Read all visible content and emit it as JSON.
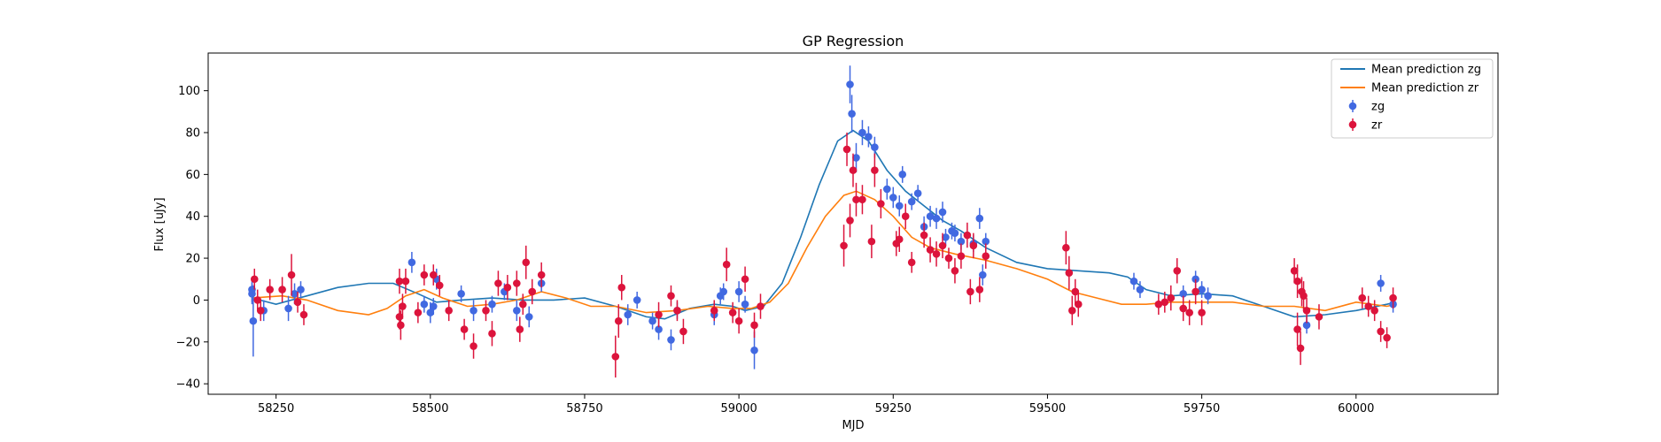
{
  "chart_data": {
    "type": "scatter",
    "title": "GP Regression",
    "xlabel": "MJD",
    "ylabel": "Flux [uJy]",
    "xlim": [
      58140,
      60230
    ],
    "ylim": [
      -45,
      118
    ],
    "xticks": [
      58250,
      58500,
      58750,
      59000,
      59250,
      59500,
      59750,
      60000
    ],
    "yticks": [
      -40,
      -20,
      0,
      20,
      40,
      60,
      80,
      100
    ],
    "grid": false,
    "legend_position": "upper right",
    "colors": {
      "zg_line": "#1f77b4",
      "zr_line": "#ff7f0e",
      "zg_points": "#4169e1",
      "zr_points": "#dc143c"
    },
    "legend": [
      {
        "key": "zg_line",
        "label": "Mean prediction zg",
        "kind": "line"
      },
      {
        "key": "zr_line",
        "label": "Mean prediction zr",
        "kind": "line"
      },
      {
        "key": "zg_points",
        "label": "zg",
        "kind": "errorbar"
      },
      {
        "key": "zr_points",
        "label": "zr",
        "kind": "errorbar"
      }
    ],
    "lines": [
      {
        "name": "Mean prediction zg",
        "points": [
          [
            58211,
            1
          ],
          [
            58250,
            -2
          ],
          [
            58300,
            2
          ],
          [
            58350,
            6
          ],
          [
            58400,
            8
          ],
          [
            58440,
            8
          ],
          [
            58480,
            3
          ],
          [
            58510,
            -1
          ],
          [
            58550,
            0
          ],
          [
            58600,
            1
          ],
          [
            58650,
            0
          ],
          [
            58700,
            0
          ],
          [
            58750,
            1
          ],
          [
            58800,
            -3
          ],
          [
            58850,
            -8
          ],
          [
            58880,
            -9
          ],
          [
            58920,
            -4
          ],
          [
            58960,
            -2
          ],
          [
            58990,
            -3
          ],
          [
            59010,
            -5
          ],
          [
            59040,
            -3
          ],
          [
            59070,
            8
          ],
          [
            59100,
            30
          ],
          [
            59130,
            55
          ],
          [
            59160,
            76
          ],
          [
            59185,
            81
          ],
          [
            59210,
            76
          ],
          [
            59240,
            62
          ],
          [
            59270,
            52
          ],
          [
            59300,
            45
          ],
          [
            59330,
            38
          ],
          [
            59360,
            33
          ],
          [
            59400,
            25
          ],
          [
            59450,
            18
          ],
          [
            59500,
            15
          ],
          [
            59550,
            14
          ],
          [
            59600,
            13
          ],
          [
            59630,
            11
          ],
          [
            59660,
            5
          ],
          [
            59700,
            2
          ],
          [
            59750,
            3
          ],
          [
            59800,
            2
          ],
          [
            59850,
            -3
          ],
          [
            59900,
            -8
          ],
          [
            59950,
            -7
          ],
          [
            60000,
            -5
          ],
          [
            60050,
            -2
          ],
          [
            60065,
            -1
          ]
        ]
      },
      {
        "name": "Mean prediction zr",
        "points": [
          [
            58211,
            1
          ],
          [
            58260,
            2
          ],
          [
            58300,
            0
          ],
          [
            58350,
            -5
          ],
          [
            58400,
            -7
          ],
          [
            58430,
            -4
          ],
          [
            58460,
            2
          ],
          [
            58490,
            5
          ],
          [
            58520,
            1
          ],
          [
            58560,
            -3
          ],
          [
            58600,
            -2
          ],
          [
            58640,
            0
          ],
          [
            58680,
            4
          ],
          [
            58720,
            1
          ],
          [
            58760,
            -3
          ],
          [
            58800,
            -3
          ],
          [
            58850,
            -6
          ],
          [
            58900,
            -5
          ],
          [
            58950,
            -3
          ],
          [
            58990,
            -4
          ],
          [
            59020,
            -4
          ],
          [
            59050,
            -1
          ],
          [
            59080,
            8
          ],
          [
            59110,
            25
          ],
          [
            59140,
            40
          ],
          [
            59170,
            50
          ],
          [
            59190,
            52
          ],
          [
            59220,
            48
          ],
          [
            59250,
            40
          ],
          [
            59280,
            30
          ],
          [
            59310,
            25
          ],
          [
            59350,
            22
          ],
          [
            59400,
            19
          ],
          [
            59450,
            15
          ],
          [
            59500,
            10
          ],
          [
            59540,
            4
          ],
          [
            59580,
            1
          ],
          [
            59620,
            -2
          ],
          [
            59660,
            -2
          ],
          [
            59700,
            -1
          ],
          [
            59750,
            -1
          ],
          [
            59800,
            -1
          ],
          [
            59850,
            -3
          ],
          [
            59900,
            -3
          ],
          [
            59950,
            -5
          ],
          [
            60000,
            -1
          ],
          [
            60050,
            -3
          ],
          [
            60065,
            -2
          ]
        ]
      }
    ],
    "series": [
      {
        "name": "zg",
        "points": [
          [
            58211,
            5,
            6
          ],
          [
            58211,
            3,
            5
          ],
          [
            58213,
            -10,
            17
          ],
          [
            58230,
            -5,
            5
          ],
          [
            58270,
            -4,
            6
          ],
          [
            58280,
            3,
            5
          ],
          [
            58290,
            5,
            4
          ],
          [
            58470,
            18,
            5
          ],
          [
            58490,
            -2,
            4
          ],
          [
            58500,
            -6,
            5
          ],
          [
            58505,
            -3,
            4
          ],
          [
            58510,
            10,
            5
          ],
          [
            58550,
            3,
            4
          ],
          [
            58570,
            -5,
            5
          ],
          [
            58600,
            -2,
            4
          ],
          [
            58620,
            4,
            4
          ],
          [
            58640,
            -5,
            5
          ],
          [
            58660,
            -8,
            5
          ],
          [
            58680,
            8,
            4
          ],
          [
            58820,
            -7,
            5
          ],
          [
            58835,
            0,
            4
          ],
          [
            58860,
            -10,
            4
          ],
          [
            58870,
            -14,
            5
          ],
          [
            58890,
            -19,
            5
          ],
          [
            58900,
            -5,
            4
          ],
          [
            58960,
            -7,
            5
          ],
          [
            58970,
            2,
            4
          ],
          [
            58975,
            4,
            4
          ],
          [
            59000,
            4,
            5
          ],
          [
            59010,
            -2,
            4
          ],
          [
            59025,
            -24,
            9
          ],
          [
            59180,
            103,
            9
          ],
          [
            59183,
            89,
            9
          ],
          [
            59190,
            68,
            7
          ],
          [
            59200,
            80,
            6
          ],
          [
            59210,
            78,
            5
          ],
          [
            59220,
            73,
            5
          ],
          [
            59240,
            53,
            5
          ],
          [
            59250,
            49,
            5
          ],
          [
            59260,
            45,
            5
          ],
          [
            59265,
            60,
            4
          ],
          [
            59280,
            47,
            4
          ],
          [
            59290,
            51,
            4
          ],
          [
            59300,
            35,
            5
          ],
          [
            59310,
            40,
            5
          ],
          [
            59320,
            39,
            5
          ],
          [
            59330,
            42,
            5
          ],
          [
            59335,
            30,
            4
          ],
          [
            59345,
            33,
            4
          ],
          [
            59350,
            32,
            4
          ],
          [
            59360,
            28,
            4
          ],
          [
            59380,
            27,
            4
          ],
          [
            59390,
            39,
            5
          ],
          [
            59395,
            12,
            5
          ],
          [
            59400,
            28,
            4
          ],
          [
            59640,
            9,
            4
          ],
          [
            59650,
            5,
            4
          ],
          [
            59720,
            3,
            4
          ],
          [
            59740,
            10,
            4
          ],
          [
            59750,
            5,
            4
          ],
          [
            59760,
            2,
            4
          ],
          [
            59920,
            -12,
            4
          ],
          [
            60040,
            8,
            4
          ],
          [
            60060,
            -2,
            4
          ]
        ]
      },
      {
        "name": "zr",
        "points": [
          [
            58215,
            10,
            5
          ],
          [
            58220,
            0,
            5
          ],
          [
            58225,
            -5,
            5
          ],
          [
            58240,
            5,
            5
          ],
          [
            58260,
            5,
            6
          ],
          [
            58275,
            12,
            10
          ],
          [
            58285,
            -1,
            5
          ],
          [
            58295,
            -7,
            5
          ],
          [
            58450,
            -8,
            6
          ],
          [
            58450,
            9,
            6
          ],
          [
            58452,
            -12,
            7
          ],
          [
            58455,
            -3,
            6
          ],
          [
            58460,
            9,
            6
          ],
          [
            58480,
            -6,
            5
          ],
          [
            58490,
            12,
            5
          ],
          [
            58505,
            12,
            5
          ],
          [
            58515,
            7,
            5
          ],
          [
            58530,
            -5,
            5
          ],
          [
            58555,
            -14,
            5
          ],
          [
            58570,
            -22,
            6
          ],
          [
            58590,
            -5,
            5
          ],
          [
            58600,
            -16,
            6
          ],
          [
            58610,
            8,
            6
          ],
          [
            58625,
            6,
            6
          ],
          [
            58640,
            8,
            6
          ],
          [
            58645,
            -14,
            6
          ],
          [
            58650,
            -2,
            5
          ],
          [
            58655,
            18,
            8
          ],
          [
            58665,
            4,
            6
          ],
          [
            58680,
            12,
            6
          ],
          [
            58800,
            -27,
            10
          ],
          [
            58805,
            -10,
            8
          ],
          [
            58810,
            6,
            6
          ],
          [
            58870,
            -7,
            6
          ],
          [
            58890,
            2,
            5
          ],
          [
            58900,
            -5,
            5
          ],
          [
            58910,
            -15,
            6
          ],
          [
            58960,
            -5,
            5
          ],
          [
            58980,
            17,
            8
          ],
          [
            58990,
            -6,
            5
          ],
          [
            59000,
            -10,
            6
          ],
          [
            59010,
            10,
            6
          ],
          [
            59025,
            -12,
            6
          ],
          [
            59035,
            -3,
            6
          ],
          [
            59170,
            26,
            10
          ],
          [
            59175,
            72,
            8
          ],
          [
            59180,
            38,
            8
          ],
          [
            59185,
            62,
            8
          ],
          [
            59190,
            48,
            8
          ],
          [
            59200,
            48,
            7
          ],
          [
            59215,
            28,
            8
          ],
          [
            59220,
            62,
            8
          ],
          [
            59230,
            46,
            7
          ],
          [
            59255,
            27,
            6
          ],
          [
            59260,
            29,
            6
          ],
          [
            59270,
            40,
            6
          ],
          [
            59280,
            18,
            5
          ],
          [
            59300,
            31,
            6
          ],
          [
            59310,
            24,
            6
          ],
          [
            59320,
            22,
            6
          ],
          [
            59330,
            26,
            6
          ],
          [
            59340,
            20,
            5
          ],
          [
            59350,
            14,
            6
          ],
          [
            59360,
            21,
            6
          ],
          [
            59370,
            31,
            6
          ],
          [
            59375,
            4,
            6
          ],
          [
            59380,
            26,
            6
          ],
          [
            59390,
            5,
            6
          ],
          [
            59400,
            21,
            6
          ],
          [
            59530,
            25,
            8
          ],
          [
            59535,
            13,
            8
          ],
          [
            59540,
            -5,
            7
          ],
          [
            59545,
            4,
            6
          ],
          [
            59550,
            -2,
            6
          ],
          [
            59680,
            -2,
            5
          ],
          [
            59690,
            -1,
            5
          ],
          [
            59700,
            1,
            6
          ],
          [
            59710,
            14,
            6
          ],
          [
            59720,
            -4,
            6
          ],
          [
            59730,
            -6,
            6
          ],
          [
            59740,
            4,
            6
          ],
          [
            59750,
            -6,
            6
          ],
          [
            59900,
            14,
            6
          ],
          [
            59905,
            9,
            8
          ],
          [
            59905,
            -14,
            8
          ],
          [
            59910,
            -23,
            8
          ],
          [
            59912,
            4,
            7
          ],
          [
            59915,
            2,
            7
          ],
          [
            59920,
            -5,
            6
          ],
          [
            59940,
            -8,
            6
          ],
          [
            60010,
            1,
            5
          ],
          [
            60020,
            -3,
            5
          ],
          [
            60030,
            -5,
            5
          ],
          [
            60040,
            -15,
            5
          ],
          [
            60050,
            -18,
            5
          ],
          [
            60060,
            1,
            5
          ]
        ]
      }
    ]
  }
}
